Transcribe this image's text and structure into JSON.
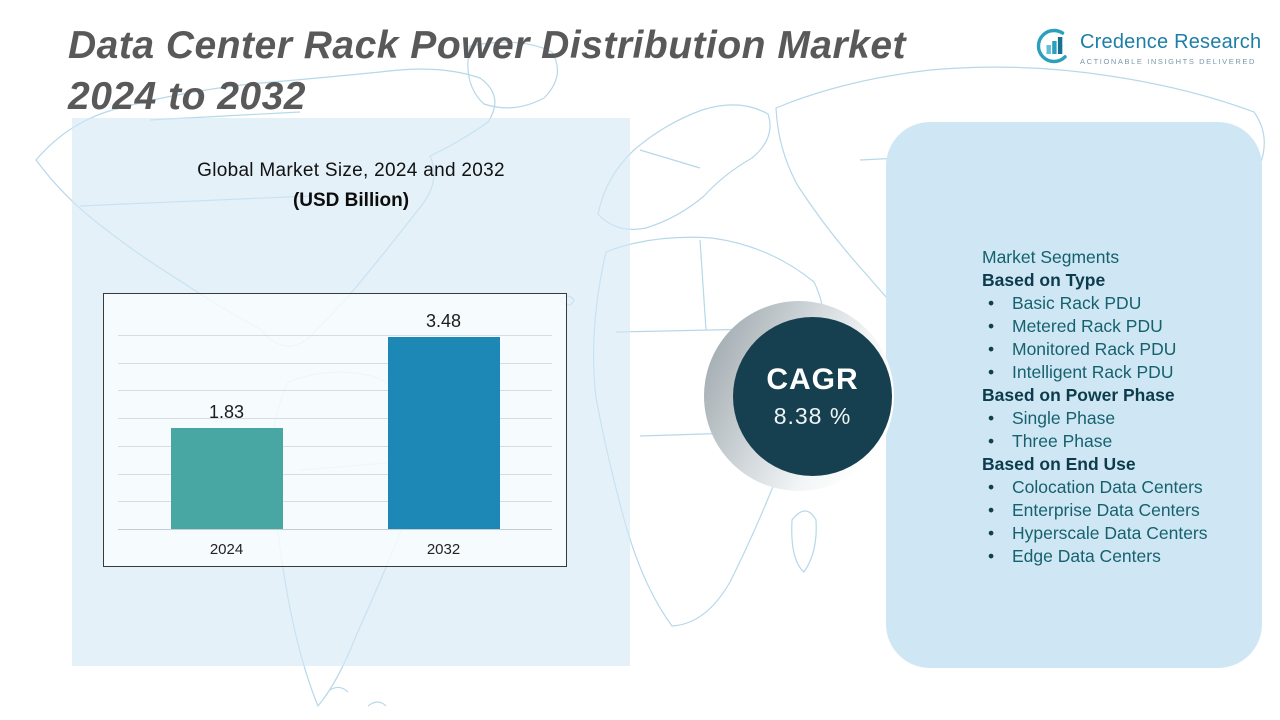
{
  "header": {
    "title_line1": "Data Center Rack Power Distribution Market",
    "title_line2": "2024 to 2032"
  },
  "logo": {
    "brand": "Credence Research",
    "tagline": "ACTIONABLE INSIGHTS DELIVERED"
  },
  "chart_panel": {
    "title": "Global Market Size, 2024 and 2032",
    "subtitle": "(USD Billion)"
  },
  "chart_data": {
    "type": "bar",
    "categories": [
      "2024",
      "2032"
    ],
    "values": [
      1.83,
      3.48
    ],
    "value_labels": [
      "1.83",
      "3.48"
    ],
    "title": "Global Market Size, 2024 and 2032 (USD Billion)",
    "xlabel": "",
    "ylabel": "",
    "ylim": [
      0,
      4
    ],
    "grid": true,
    "legend": false,
    "bar_colors": [
      "#48a7a3",
      "#1d88b6"
    ]
  },
  "cagr": {
    "label": "CAGR",
    "value": "8.38 %"
  },
  "segments": {
    "title": "Market Segments",
    "groups": [
      {
        "heading": "Based on Type",
        "items": [
          "Basic Rack PDU",
          "Metered Rack PDU",
          "Monitored Rack PDU",
          "Intelligent Rack PDU"
        ]
      },
      {
        "heading": "Based on Power Phase",
        "items": [
          "Single Phase",
          "Three Phase"
        ]
      },
      {
        "heading": "Based on End Use",
        "items": [
          "Colocation Data Centers",
          "Enterprise Data Centers",
          "Hyperscale Data Centers",
          "Edge Data Centers"
        ]
      }
    ]
  },
  "colors": {
    "bar_2024": "#48a7a3",
    "bar_2032": "#1d88b6",
    "cagr_circle": "#16404f",
    "right_panel": "#cfe7f4",
    "title_text": "#595959",
    "map_lines": "#b7d8e9",
    "brand_teal": "#1d7fa8"
  }
}
